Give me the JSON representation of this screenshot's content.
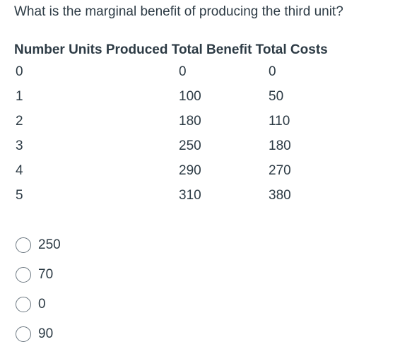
{
  "question": "What is the marginal benefit of producing the third unit?",
  "table": {
    "header": "Number Units Produced Total Benefit Total Costs",
    "rows": [
      {
        "units": "0",
        "benefit": "0",
        "costs": "0"
      },
      {
        "units": "1",
        "benefit": "100",
        "costs": "50"
      },
      {
        "units": "2",
        "benefit": "180",
        "costs": "110"
      },
      {
        "units": "3",
        "benefit": "250",
        "costs": "180"
      },
      {
        "units": "4",
        "benefit": "290",
        "costs": "270"
      },
      {
        "units": "5",
        "benefit": "310",
        "costs": "380"
      }
    ]
  },
  "options": [
    "250",
    "70",
    "0",
    "90"
  ]
}
